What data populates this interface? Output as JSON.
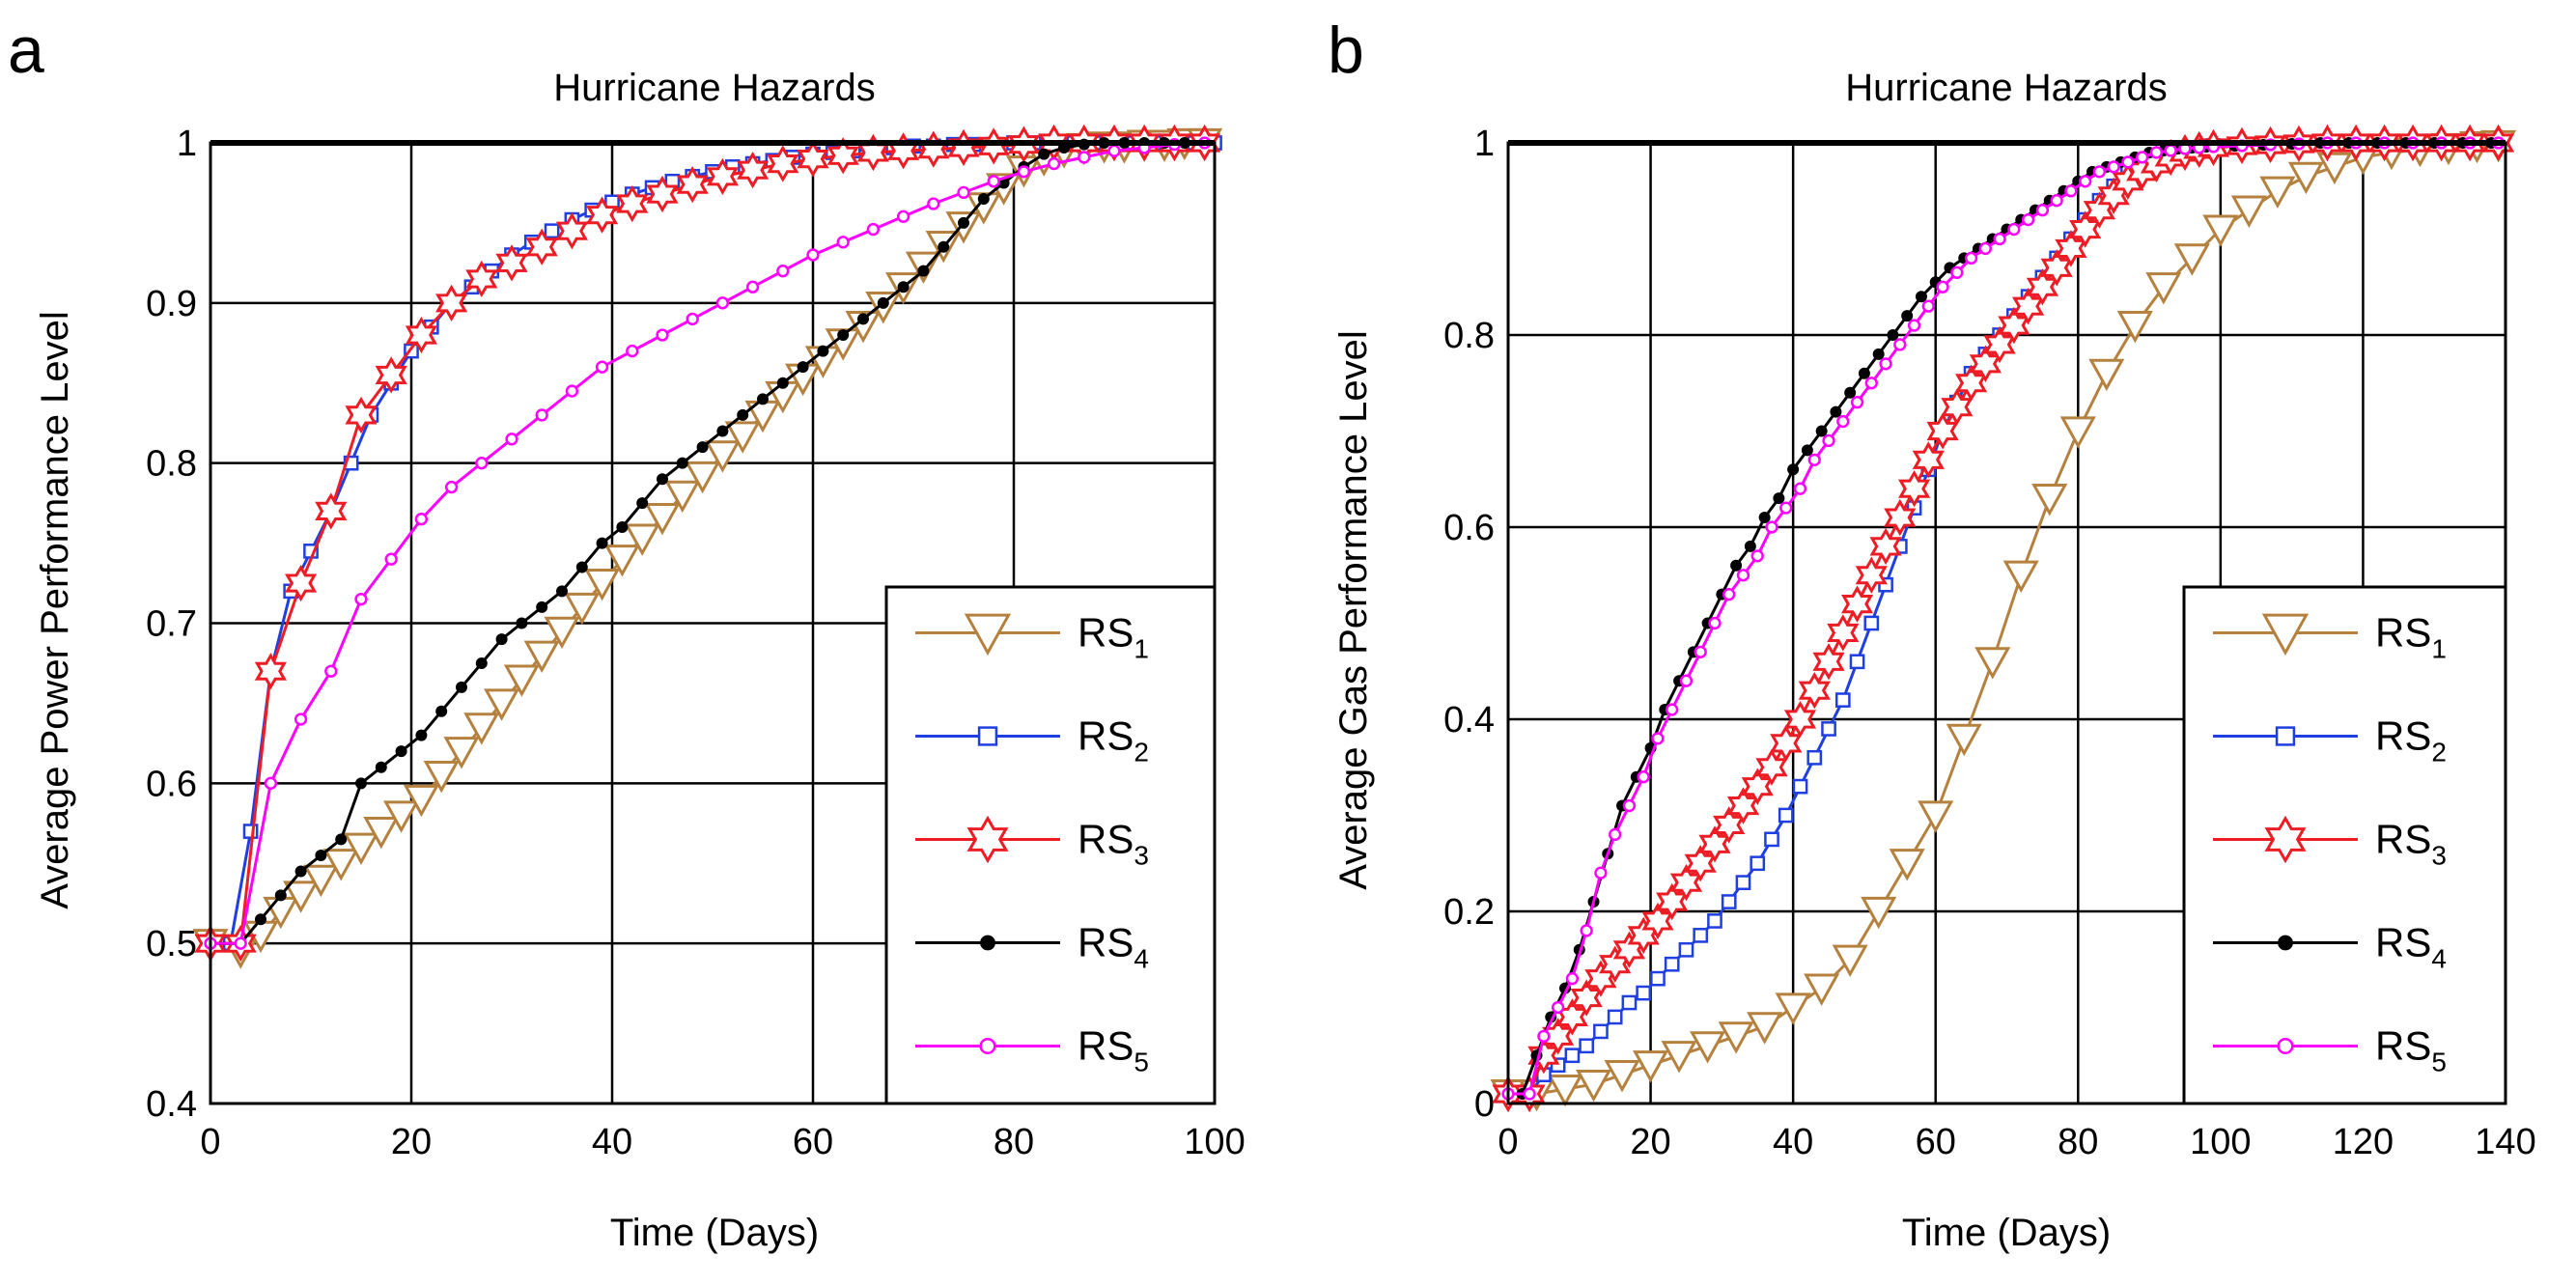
{
  "chart_data": [
    {
      "panel": "a",
      "type": "line",
      "title": "Hurricane Hazards",
      "xlabel": "Time (Days)",
      "ylabel": "Average Power Performance Level",
      "xlim": [
        0,
        100
      ],
      "ylim": [
        0.4,
        1
      ],
      "xticks": [
        "0",
        "20",
        "40",
        "60",
        "80",
        "100"
      ],
      "yticks": [
        "0.4",
        "0.5",
        "0.6",
        "0.7",
        "0.8",
        "0.9",
        "1"
      ],
      "grid": true,
      "legend_position": "bottom-right",
      "series": [
        {
          "name": "RS",
          "sub": "1",
          "color": "#b5813f",
          "marker": "triangle-down",
          "x": [
            0,
            3,
            5,
            7,
            9,
            11,
            13,
            15,
            17,
            19,
            21,
            23,
            25,
            27,
            29,
            31,
            33,
            35,
            37,
            39,
            41,
            43,
            45,
            47,
            49,
            51,
            53,
            55,
            57,
            59,
            61,
            63,
            65,
            67,
            69,
            71,
            73,
            75,
            77,
            79,
            81,
            83,
            85,
            87,
            89,
            91,
            93,
            95,
            97,
            99
          ],
          "y": [
            0.5,
            0.495,
            0.505,
            0.52,
            0.53,
            0.54,
            0.55,
            0.56,
            0.57,
            0.58,
            0.59,
            0.605,
            0.62,
            0.635,
            0.65,
            0.665,
            0.68,
            0.695,
            0.71,
            0.725,
            0.74,
            0.753,
            0.766,
            0.78,
            0.792,
            0.805,
            0.817,
            0.83,
            0.842,
            0.853,
            0.864,
            0.875,
            0.886,
            0.898,
            0.91,
            0.923,
            0.936,
            0.948,
            0.96,
            0.972,
            0.983,
            0.99,
            0.995,
            0.997,
            0.998,
            0.998,
            0.999,
            0.999,
            1,
            1
          ]
        },
        {
          "name": "RS",
          "sub": "2",
          "color": "#1f3fe0",
          "marker": "square",
          "x": [
            0,
            2,
            4,
            6,
            8,
            10,
            12,
            14,
            16,
            18,
            20,
            22,
            24,
            26,
            28,
            30,
            32,
            34,
            36,
            38,
            40,
            42,
            44,
            46,
            48,
            50,
            52,
            54,
            56,
            58,
            60,
            62,
            64,
            66,
            68,
            70,
            72,
            74,
            76,
            78,
            80,
            82,
            84,
            86,
            88,
            90,
            92,
            94,
            96,
            98,
            100
          ],
          "y": [
            0.5,
            0.5,
            0.57,
            0.67,
            0.72,
            0.745,
            0.77,
            0.8,
            0.83,
            0.85,
            0.87,
            0.885,
            0.9,
            0.91,
            0.92,
            0.93,
            0.938,
            0.945,
            0.952,
            0.958,
            0.963,
            0.968,
            0.972,
            0.976,
            0.979,
            0.982,
            0.985,
            0.987,
            0.989,
            0.991,
            0.993,
            0.994,
            0.995,
            0.996,
            0.997,
            0.998,
            0.998,
            0.999,
            0.999,
            0.999,
            1,
            1,
            1,
            1,
            1,
            1,
            1,
            1,
            1,
            1,
            1
          ]
        },
        {
          "name": "RS",
          "sub": "3",
          "color": "#ee1c24",
          "marker": "star",
          "x": [
            0,
            3,
            6,
            9,
            12,
            15,
            18,
            21,
            24,
            27,
            30,
            33,
            36,
            39,
            42,
            45,
            48,
            51,
            54,
            57,
            60,
            63,
            66,
            69,
            72,
            75,
            78,
            81,
            84,
            87,
            90,
            93,
            96,
            99
          ],
          "y": [
            0.5,
            0.5,
            0.67,
            0.725,
            0.77,
            0.83,
            0.855,
            0.88,
            0.9,
            0.915,
            0.925,
            0.935,
            0.945,
            0.955,
            0.962,
            0.968,
            0.974,
            0.979,
            0.983,
            0.987,
            0.99,
            0.992,
            0.994,
            0.995,
            0.996,
            0.997,
            0.998,
            0.999,
            1,
            1,
            1,
            1,
            1,
            1
          ]
        },
        {
          "name": "RS",
          "sub": "4",
          "color": "#000000",
          "marker": "circle-filled",
          "x": [
            0,
            3,
            5,
            7,
            9,
            11,
            13,
            15,
            17,
            19,
            21,
            23,
            25,
            27,
            29,
            31,
            33,
            35,
            37,
            39,
            41,
            43,
            45,
            47,
            49,
            51,
            53,
            55,
            57,
            59,
            61,
            63,
            65,
            67,
            69,
            71,
            73,
            75,
            77,
            79,
            81,
            83,
            85,
            87,
            89,
            91,
            93,
            95,
            97,
            99
          ],
          "y": [
            0.5,
            0.5,
            0.515,
            0.53,
            0.545,
            0.555,
            0.565,
            0.6,
            0.61,
            0.62,
            0.63,
            0.645,
            0.66,
            0.675,
            0.69,
            0.7,
            0.71,
            0.72,
            0.735,
            0.75,
            0.76,
            0.775,
            0.79,
            0.8,
            0.81,
            0.82,
            0.83,
            0.84,
            0.85,
            0.86,
            0.87,
            0.88,
            0.89,
            0.9,
            0.91,
            0.92,
            0.935,
            0.95,
            0.965,
            0.975,
            0.985,
            0.993,
            0.997,
            0.999,
            1,
            1,
            1,
            1,
            1,
            1
          ]
        },
        {
          "name": "RS",
          "sub": "5",
          "color": "#ff00ff",
          "marker": "circle-open",
          "x": [
            0,
            3,
            6,
            9,
            12,
            15,
            18,
            21,
            24,
            27,
            30,
            33,
            36,
            39,
            42,
            45,
            48,
            51,
            54,
            57,
            60,
            63,
            66,
            69,
            72,
            75,
            78,
            81,
            84,
            87,
            90,
            93,
            96,
            99
          ],
          "y": [
            0.5,
            0.5,
            0.6,
            0.64,
            0.67,
            0.715,
            0.74,
            0.765,
            0.785,
            0.8,
            0.815,
            0.83,
            0.845,
            0.86,
            0.87,
            0.88,
            0.89,
            0.9,
            0.91,
            0.92,
            0.93,
            0.938,
            0.946,
            0.954,
            0.962,
            0.969,
            0.976,
            0.982,
            0.987,
            0.991,
            0.995,
            0.997,
            0.999,
            1
          ]
        }
      ]
    },
    {
      "panel": "b",
      "type": "line",
      "title": "Hurricane Hazards",
      "xlabel": "Time (Days)",
      "ylabel": "Average Gas Performance Level",
      "xlim": [
        0,
        140
      ],
      "ylim": [
        0,
        1
      ],
      "xticks": [
        "0",
        "20",
        "40",
        "60",
        "80",
        "100",
        "120",
        "140"
      ],
      "yticks": [
        "0",
        "0.2",
        "0.4",
        "0.6",
        "0.8",
        "1"
      ],
      "grid": true,
      "legend_position": "bottom-right",
      "series": [
        {
          "name": "RS",
          "sub": "1",
          "color": "#b5813f",
          "marker": "triangle-down",
          "x": [
            0,
            4,
            8,
            12,
            16,
            20,
            24,
            28,
            32,
            36,
            40,
            44,
            48,
            52,
            56,
            60,
            64,
            68,
            72,
            76,
            80,
            84,
            88,
            92,
            96,
            100,
            104,
            108,
            112,
            116,
            120,
            124,
            128,
            132,
            136,
            139
          ],
          "y": [
            0.01,
            0.01,
            0.015,
            0.02,
            0.03,
            0.04,
            0.05,
            0.06,
            0.07,
            0.08,
            0.1,
            0.12,
            0.15,
            0.2,
            0.25,
            0.3,
            0.38,
            0.46,
            0.55,
            0.63,
            0.7,
            0.76,
            0.81,
            0.85,
            0.88,
            0.91,
            0.93,
            0.95,
            0.965,
            0.975,
            0.985,
            0.99,
            0.993,
            0.995,
            0.997,
            0.998
          ]
        },
        {
          "name": "RS",
          "sub": "2",
          "color": "#1f3fe0",
          "marker": "square",
          "x": [
            0,
            3,
            5,
            7,
            9,
            11,
            13,
            15,
            17,
            19,
            21,
            23,
            25,
            27,
            29,
            31,
            33,
            35,
            37,
            39,
            41,
            43,
            45,
            47,
            49,
            51,
            53,
            55,
            57,
            59,
            61,
            63,
            65,
            67,
            69,
            71,
            73,
            75,
            77,
            79,
            81,
            83,
            85,
            87,
            89,
            91,
            93,
            95,
            97,
            99,
            103,
            107,
            111,
            115,
            119,
            123,
            127,
            131,
            135,
            139
          ],
          "y": [
            0.01,
            0.01,
            0.03,
            0.04,
            0.05,
            0.06,
            0.075,
            0.09,
            0.105,
            0.115,
            0.13,
            0.145,
            0.16,
            0.175,
            0.19,
            0.21,
            0.23,
            0.25,
            0.275,
            0.3,
            0.33,
            0.36,
            0.39,
            0.42,
            0.46,
            0.5,
            0.54,
            0.58,
            0.62,
            0.66,
            0.7,
            0.73,
            0.76,
            0.78,
            0.8,
            0.82,
            0.84,
            0.86,
            0.88,
            0.9,
            0.92,
            0.94,
            0.955,
            0.97,
            0.98,
            0.985,
            0.99,
            0.993,
            0.995,
            0.997,
            0.998,
            0.999,
            0.999,
            1,
            1,
            1,
            1,
            1,
            1,
            1
          ]
        },
        {
          "name": "RS",
          "sub": "3",
          "color": "#ee1c24",
          "marker": "star",
          "x": [
            0,
            3,
            5,
            7,
            9,
            11,
            13,
            15,
            17,
            19,
            21,
            23,
            25,
            27,
            29,
            31,
            33,
            35,
            37,
            39,
            41,
            43,
            45,
            47,
            49,
            51,
            53,
            55,
            57,
            59,
            61,
            63,
            65,
            67,
            69,
            71,
            73,
            75,
            77,
            79,
            81,
            83,
            85,
            87,
            89,
            91,
            93,
            95,
            97,
            99,
            103,
            107,
            111,
            115,
            119,
            123,
            127,
            131,
            135,
            139
          ],
          "y": [
            0.01,
            0.01,
            0.05,
            0.07,
            0.09,
            0.11,
            0.13,
            0.145,
            0.16,
            0.175,
            0.19,
            0.21,
            0.23,
            0.25,
            0.27,
            0.29,
            0.31,
            0.33,
            0.35,
            0.375,
            0.4,
            0.43,
            0.46,
            0.49,
            0.52,
            0.55,
            0.58,
            0.61,
            0.64,
            0.67,
            0.7,
            0.725,
            0.75,
            0.77,
            0.79,
            0.81,
            0.83,
            0.85,
            0.87,
            0.89,
            0.91,
            0.93,
            0.945,
            0.96,
            0.97,
            0.978,
            0.985,
            0.99,
            0.993,
            0.995,
            0.997,
            0.998,
            0.999,
            1,
            1,
            1,
            1,
            1,
            1,
            1
          ]
        },
        {
          "name": "RS",
          "sub": "4",
          "color": "#000000",
          "marker": "circle-filled",
          "x": [
            0,
            2,
            4,
            6,
            8,
            10,
            12,
            14,
            16,
            18,
            20,
            22,
            24,
            26,
            28,
            30,
            32,
            34,
            36,
            38,
            40,
            42,
            44,
            46,
            48,
            50,
            52,
            54,
            56,
            58,
            60,
            62,
            64,
            66,
            68,
            70,
            72,
            74,
            76,
            78,
            80,
            82,
            84,
            86,
            88,
            90,
            92,
            94,
            96,
            98,
            102,
            106,
            110,
            114,
            118,
            122,
            126,
            130,
            134,
            138
          ],
          "y": [
            0.01,
            0.01,
            0.05,
            0.09,
            0.12,
            0.16,
            0.21,
            0.26,
            0.31,
            0.34,
            0.37,
            0.41,
            0.44,
            0.47,
            0.5,
            0.53,
            0.56,
            0.58,
            0.61,
            0.63,
            0.66,
            0.68,
            0.7,
            0.72,
            0.74,
            0.76,
            0.78,
            0.8,
            0.82,
            0.84,
            0.855,
            0.87,
            0.88,
            0.89,
            0.9,
            0.91,
            0.92,
            0.93,
            0.94,
            0.95,
            0.96,
            0.97,
            0.975,
            0.98,
            0.985,
            0.99,
            0.992,
            0.994,
            0.995,
            0.996,
            0.997,
            0.998,
            0.999,
            1,
            1,
            1,
            1,
            1,
            1,
            1
          ]
        },
        {
          "name": "RS",
          "sub": "5",
          "color": "#ff00ff",
          "marker": "circle-open",
          "x": [
            0,
            3,
            5,
            7,
            9,
            11,
            13,
            15,
            17,
            19,
            21,
            23,
            25,
            27,
            29,
            31,
            33,
            35,
            37,
            39,
            41,
            43,
            45,
            47,
            49,
            51,
            53,
            55,
            57,
            59,
            61,
            63,
            65,
            67,
            69,
            71,
            73,
            75,
            77,
            79,
            81,
            83,
            85,
            87,
            89,
            91,
            93,
            95,
            97,
            99,
            103,
            107,
            111,
            115,
            119,
            123,
            127,
            131,
            135,
            139
          ],
          "y": [
            0.01,
            0.01,
            0.07,
            0.1,
            0.13,
            0.18,
            0.24,
            0.28,
            0.31,
            0.34,
            0.38,
            0.41,
            0.44,
            0.47,
            0.5,
            0.53,
            0.55,
            0.57,
            0.6,
            0.62,
            0.64,
            0.67,
            0.69,
            0.71,
            0.73,
            0.75,
            0.77,
            0.79,
            0.81,
            0.83,
            0.85,
            0.865,
            0.88,
            0.89,
            0.9,
            0.91,
            0.92,
            0.93,
            0.94,
            0.95,
            0.96,
            0.97,
            0.975,
            0.98,
            0.985,
            0.99,
            0.992,
            0.994,
            0.995,
            0.996,
            0.997,
            0.998,
            0.999,
            1,
            1,
            1,
            1,
            1,
            1,
            1
          ]
        }
      ]
    }
  ]
}
